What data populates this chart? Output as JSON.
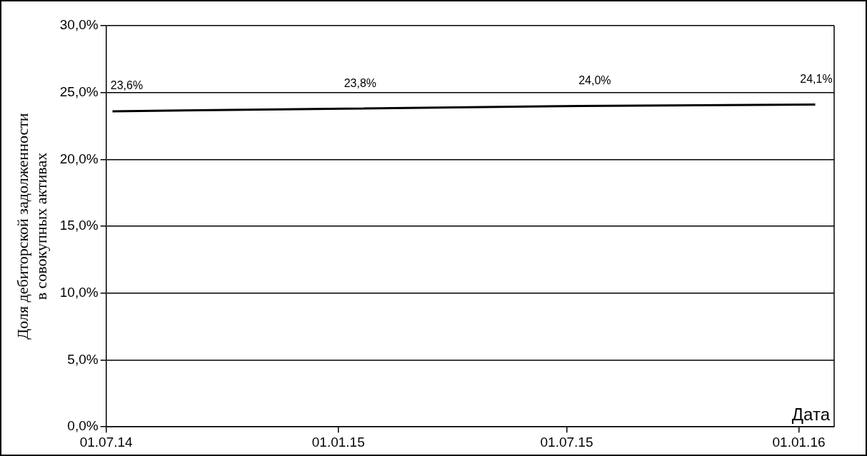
{
  "chart_data": {
    "type": "line",
    "xlabel": "Дата",
    "ylabel": "Доля дебиторской задолженности\nв совокупных активах",
    "x": [
      "2014-07-06",
      "2015-01-07",
      "2015-07-12",
      "2016-01-14"
    ],
    "series": [
      {
        "color": "#000000",
        "values": [
          23.6,
          23.8,
          24.0,
          24.1
        ],
        "value_labels": [
          "23,6%",
          "23,8%",
          "24,0%",
          "24,1%"
        ]
      }
    ],
    "xlim": [
      "2014-07-01",
      "2016-01-29"
    ],
    "xticks": [
      {
        "value": "2014-07-01",
        "label": "01.07.14"
      },
      {
        "value": "2015-01-01",
        "label": "01.01.15"
      },
      {
        "value": "2015-07-01",
        "label": "01.07.15"
      },
      {
        "value": "2016-01-01",
        "label": "01.01.16"
      }
    ],
    "ylim": [
      0,
      30
    ],
    "yticks": [
      {
        "value": 0,
        "label": "0,0%"
      },
      {
        "value": 5,
        "label": "5,0%"
      },
      {
        "value": 10,
        "label": "10,0%"
      },
      {
        "value": 15,
        "label": "15,0%"
      },
      {
        "value": 20,
        "label": "20,0%"
      },
      {
        "value": 25,
        "label": "25,0%"
      },
      {
        "value": 30,
        "label": "30,0%"
      }
    ],
    "grid": "y",
    "legend": false,
    "marker": "none",
    "line_style": "solid"
  }
}
